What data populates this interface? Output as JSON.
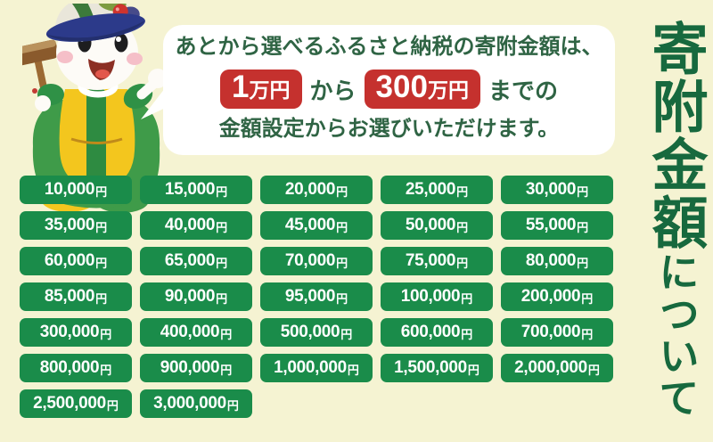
{
  "page": {
    "background_color": "#f5f3d2"
  },
  "vertical_title": {
    "main": "寄附金額",
    "suffix": "について",
    "color": "#17693e"
  },
  "speech_bubble": {
    "line1": "あとから選べるふるさと納税の寄附金額は、",
    "min_badge": {
      "value": "1",
      "unit": "万円"
    },
    "connector": "から",
    "max_badge": {
      "value": "300",
      "unit": "万円"
    },
    "after_max": "までの",
    "line3": "金額設定からお選びいただけます。",
    "text_color": "#2f6444",
    "badge_color": "#c5312e"
  },
  "mascot": {
    "description": "mascot-character-with-vegetable-hat-and-mallet"
  },
  "amount_grid": {
    "unit": "円",
    "button_color": "#1a8c4a",
    "amounts": [
      "10,000",
      "15,000",
      "20,000",
      "25,000",
      "30,000",
      "35,000",
      "40,000",
      "45,000",
      "50,000",
      "55,000",
      "60,000",
      "65,000",
      "70,000",
      "75,000",
      "80,000",
      "85,000",
      "90,000",
      "95,000",
      "100,000",
      "200,000",
      "300,000",
      "400,000",
      "500,000",
      "600,000",
      "700,000",
      "800,000",
      "900,000",
      "1,000,000",
      "1,500,000",
      "2,000,000",
      "2,500,000",
      "3,000,000"
    ]
  }
}
